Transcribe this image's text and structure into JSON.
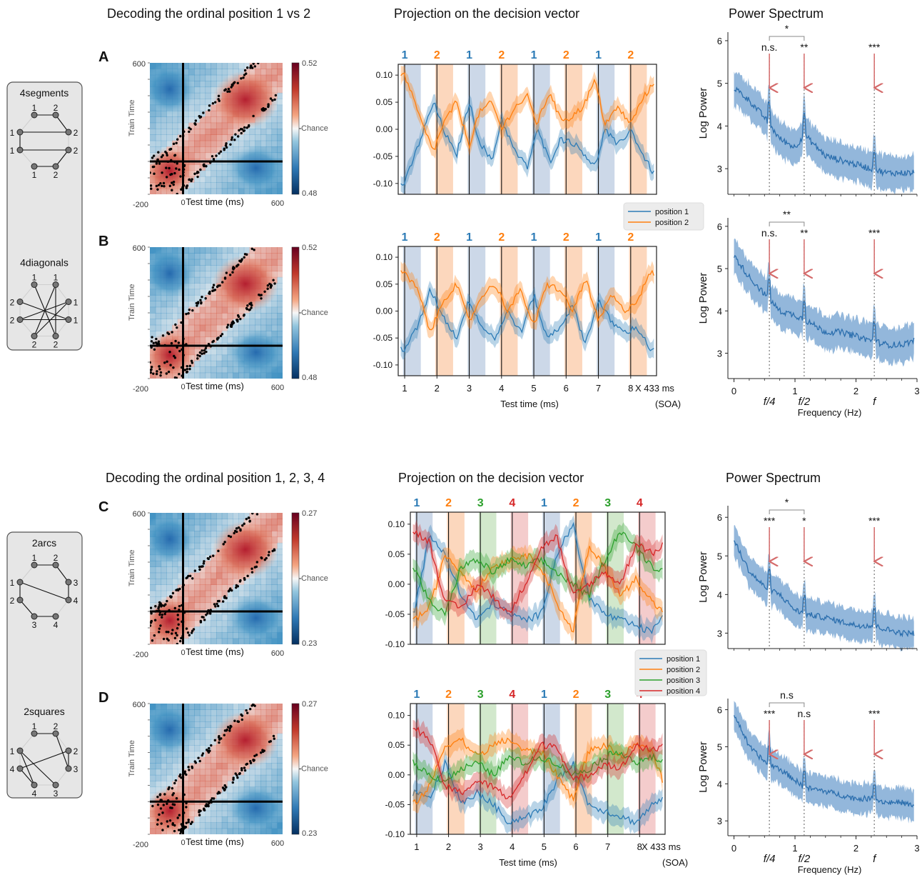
{
  "colors": {
    "pos1": "#2c7bb6",
    "pos2": "#ff7f0e",
    "pos3": "#2ca02c",
    "pos4": "#d62728",
    "pos1_band": "#c6d4e6",
    "pos2_band": "#fcd3b6",
    "pos3_band": "#cde6c7",
    "pos4_band": "#f3c6c6",
    "spectrum_line": "#2c6fae",
    "spectrum_band": "#6f9fcf",
    "arrow": "#d46a6a",
    "heat_red": "#b2182b",
    "heat_blue": "#2166ac"
  },
  "sections": [
    {
      "heat_title": "Decoding the ordinal position 1 vs 2",
      "proj_title": "Projection on the decision vector",
      "spec_title": "Power Spectrum",
      "legend": [
        "position 1",
        "position 2"
      ],
      "sequence_sets": [
        {
          "name": "4segments"
        },
        {
          "name": "4diagonals"
        }
      ]
    },
    {
      "heat_title": "Decoding the ordinal position 1, 2, 3, 4",
      "proj_title": "Projection on the decision vector",
      "spec_title": "Power Spectrum",
      "legend": [
        "position 1",
        "position 2",
        "position 3",
        "position 4"
      ],
      "sequence_sets": [
        {
          "name": "2arcs"
        },
        {
          "name": "2squares"
        }
      ]
    }
  ],
  "panels": [
    {
      "letter": "A",
      "heat": {
        "cbar_max": "0.52",
        "cbar_min": "0.48",
        "chance": "Chance"
      },
      "seq": [
        "1",
        "2",
        "1",
        "2",
        "1",
        "2",
        "1",
        "2"
      ],
      "spectrum": {
        "bracket": "*",
        "labels": [
          "n.s.",
          "**",
          "***"
        ]
      }
    },
    {
      "letter": "B",
      "heat": {
        "cbar_max": "0.52",
        "cbar_min": "0.48",
        "chance": "Chance"
      },
      "seq": [
        "1",
        "2",
        "1",
        "2",
        "1",
        "2",
        "1",
        "2"
      ],
      "spectrum": {
        "bracket": "**",
        "labels": [
          "n.s.",
          "**",
          "***"
        ]
      }
    },
    {
      "letter": "C",
      "heat": {
        "cbar_max": "0.27",
        "cbar_min": "0.23",
        "chance": "Chance"
      },
      "seq": [
        "1",
        "2",
        "3",
        "4",
        "1",
        "2",
        "3",
        "4"
      ],
      "spectrum": {
        "bracket": "*",
        "labels": [
          "***",
          "*",
          "***"
        ]
      }
    },
    {
      "letter": "D",
      "heat": {
        "cbar_max": "0.27",
        "cbar_min": "0.23",
        "chance": "Chance"
      },
      "seq": [
        "1",
        "2",
        "3",
        "4",
        "1",
        "2",
        "3",
        "4"
      ],
      "spectrum": {
        "bracket": "n.s",
        "labels": [
          "***",
          "n.s",
          "***"
        ]
      }
    }
  ],
  "heat_axes": {
    "ylabel": "Train Time",
    "xlabel": "Test time (ms)",
    "y_top": "600",
    "x_left": "-200",
    "x_zero": "0",
    "x_right": "600"
  },
  "proj_axes": {
    "xlabel": "Test time (ms)",
    "soa_label": "X 433 ms",
    "soa_sub": "(SOA)",
    "x_ticks": [
      "1",
      "2",
      "3",
      "4",
      "5",
      "6",
      "7",
      "8"
    ]
  },
  "spec_axes": {
    "ylabel": "Log Power",
    "xlabel": "Frequency (Hz)",
    "x_ticks": [
      "0",
      "1",
      "2",
      "3"
    ],
    "freq_labels": [
      "f/4",
      "f/2",
      "f"
    ]
  },
  "chart_data": [
    {
      "type": "heatmap",
      "panel": "A",
      "xlabel": "Test time (ms)",
      "ylabel": "Train Time",
      "xlim": [
        -200,
        600
      ],
      "ylim": [
        -200,
        600
      ],
      "colorbar": [
        0.48,
        0.52
      ],
      "colorbar_mid": "Chance"
    },
    {
      "type": "line",
      "panel": "A",
      "xlabel": "Test time (ms)",
      "xlim": [
        0.8,
        8.8
      ],
      "ylim": [
        -0.12,
        0.12
      ],
      "y_ticks": [
        -0.1,
        -0.05,
        0.0,
        0.05,
        0.1
      ],
      "series": [
        {
          "name": "position 1",
          "x": [
            0.9,
            1.0,
            1.3,
            1.6,
            1.9,
            2.2,
            2.6,
            3.0,
            3.3,
            3.7,
            4.0,
            4.4,
            4.8,
            5.1,
            5.5,
            5.8,
            6.1,
            6.5,
            6.9,
            7.2,
            7.6,
            8.0,
            8.4,
            8.8
          ],
          "y": [
            -0.1,
            -0.1,
            -0.05,
            0.0,
            0.05,
            0.0,
            -0.05,
            0.05,
            -0.02,
            -0.06,
            0.02,
            -0.04,
            -0.07,
            0.0,
            -0.06,
            -0.02,
            -0.02,
            -0.04,
            -0.07,
            0.0,
            -0.03,
            0.0,
            -0.05,
            -0.09
          ]
        },
        {
          "name": "position 2",
          "x": [
            0.9,
            1.0,
            1.3,
            1.6,
            1.9,
            2.2,
            2.6,
            3.0,
            3.3,
            3.7,
            4.0,
            4.4,
            4.8,
            5.1,
            5.5,
            5.8,
            6.1,
            6.5,
            6.9,
            7.2,
            7.6,
            8.0,
            8.4,
            8.8
          ],
          "y": [
            0.1,
            0.1,
            0.05,
            0.0,
            -0.04,
            0.01,
            0.05,
            -0.03,
            0.03,
            0.05,
            0.0,
            0.04,
            0.06,
            0.01,
            0.07,
            0.02,
            0.02,
            0.04,
            0.09,
            0.01,
            0.04,
            0.01,
            0.06,
            0.09
          ]
        }
      ]
    },
    {
      "type": "line",
      "panel": "A-spectrum",
      "xlabel": "Frequency (Hz)",
      "ylabel": "Log Power",
      "xlim": [
        -0.1,
        3.0
      ],
      "ylim": [
        2.4,
        6.2
      ],
      "y_ticks": [
        3,
        4,
        5,
        6
      ],
      "series": [
        {
          "name": "",
          "x": [
            0.0,
            0.25,
            0.5,
            0.75,
            1.0,
            1.15,
            1.5,
            1.75,
            2.0,
            2.25,
            2.5,
            2.75,
            2.95
          ],
          "y": [
            4.9,
            4.6,
            4.2,
            3.7,
            3.5,
            3.8,
            3.3,
            3.2,
            3.1,
            3.0,
            2.9,
            2.9,
            2.9
          ]
        }
      ]
    },
    {
      "type": "heatmap",
      "panel": "B",
      "xlabel": "Test time (ms)",
      "ylabel": "Train Time",
      "xlim": [
        -200,
        600
      ],
      "ylim": [
        -200,
        600
      ],
      "colorbar": [
        0.48,
        0.52
      ],
      "colorbar_mid": "Chance"
    },
    {
      "type": "line",
      "panel": "B",
      "xlabel": "Test time (ms)",
      "xlim": [
        0.8,
        8.8
      ],
      "ylim": [
        -0.12,
        0.12
      ],
      "y_ticks": [
        -0.1,
        -0.05,
        0.0,
        0.05,
        0.1
      ],
      "series": [
        {
          "name": "position 1",
          "x": [
            1.0,
            1.4,
            1.8,
            2.2,
            2.6,
            3.0,
            3.4,
            3.8,
            4.2,
            4.6,
            5.0,
            5.4,
            5.8,
            6.2,
            6.6,
            7.0,
            7.4,
            7.8,
            8.2,
            8.6
          ],
          "y": [
            -0.07,
            -0.03,
            0.04,
            -0.01,
            -0.05,
            0.02,
            -0.03,
            -0.05,
            0.0,
            -0.04,
            0.03,
            -0.05,
            -0.03,
            0.01,
            -0.06,
            0.02,
            -0.02,
            -0.04,
            -0.03,
            -0.07
          ]
        },
        {
          "name": "position 2",
          "x": [
            1.0,
            1.4,
            1.8,
            2.2,
            2.6,
            3.0,
            3.4,
            3.8,
            4.2,
            4.6,
            5.0,
            5.4,
            5.8,
            6.2,
            6.6,
            7.0,
            7.4,
            7.8,
            8.2,
            8.6
          ],
          "y": [
            0.07,
            0.04,
            -0.04,
            0.02,
            0.05,
            -0.02,
            0.03,
            0.05,
            0.0,
            0.04,
            -0.03,
            0.05,
            0.04,
            0.0,
            0.06,
            -0.02,
            0.03,
            0.0,
            0.02,
            0.07
          ]
        }
      ]
    },
    {
      "type": "line",
      "panel": "B-spectrum",
      "xlabel": "Frequency (Hz)",
      "ylabel": "Log Power",
      "xlim": [
        -0.1,
        3.0
      ],
      "ylim": [
        2.4,
        6.2
      ],
      "y_ticks": [
        3,
        4,
        5,
        6
      ],
      "series": [
        {
          "name": "",
          "x": [
            0.0,
            0.25,
            0.5,
            0.75,
            1.0,
            1.15,
            1.5,
            1.75,
            2.0,
            2.25,
            2.5,
            2.75,
            2.95
          ],
          "y": [
            5.3,
            4.8,
            4.4,
            4.0,
            3.9,
            3.8,
            3.5,
            3.5,
            3.4,
            3.3,
            3.2,
            3.2,
            3.3
          ]
        }
      ]
    },
    {
      "type": "heatmap",
      "panel": "C",
      "xlabel": "Test time (ms)",
      "ylabel": "Train Time",
      "xlim": [
        -200,
        600
      ],
      "ylim": [
        -200,
        600
      ],
      "colorbar": [
        0.23,
        0.27
      ],
      "colorbar_mid": "Chance"
    },
    {
      "type": "line",
      "panel": "C",
      "xlabel": "Test time (ms)",
      "xlim": [
        0.8,
        8.8
      ],
      "ylim": [
        -0.1,
        0.12
      ],
      "y_ticks": [
        -0.1,
        -0.05,
        0.0,
        0.05,
        0.1
      ],
      "series": [
        {
          "name": "position 1",
          "x": [
            0.9,
            1.4,
            1.9,
            2.4,
            2.9,
            3.4,
            3.9,
            4.4,
            4.9,
            5.4,
            5.9,
            6.4,
            6.9,
            7.4,
            7.9,
            8.4,
            8.8
          ],
          "y": [
            -0.05,
            0.08,
            0.05,
            -0.02,
            -0.06,
            -0.03,
            -0.05,
            -0.06,
            -0.05,
            0.05,
            0.1,
            -0.02,
            -0.05,
            -0.06,
            -0.07,
            -0.08,
            -0.04
          ]
        },
        {
          "name": "position 2",
          "x": [
            0.9,
            1.4,
            1.9,
            2.4,
            2.9,
            3.4,
            3.9,
            4.4,
            4.9,
            5.4,
            5.9,
            6.4,
            6.9,
            7.4,
            7.9,
            8.4,
            8.8
          ],
          "y": [
            -0.06,
            -0.04,
            0.05,
            0.02,
            -0.01,
            0.03,
            0.04,
            0.05,
            0.03,
            -0.03,
            -0.08,
            0.06,
            0.03,
            -0.02,
            0.01,
            -0.03,
            -0.05
          ]
        },
        {
          "name": "position 3",
          "x": [
            0.9,
            1.4,
            1.9,
            2.4,
            2.9,
            3.4,
            3.9,
            4.4,
            4.9,
            5.4,
            5.9,
            6.4,
            6.9,
            7.4,
            7.9,
            8.4,
            8.8
          ],
          "y": [
            0.03,
            -0.03,
            -0.05,
            0.03,
            0.04,
            0.02,
            0.04,
            0.03,
            0.04,
            0.02,
            0.0,
            -0.02,
            0.04,
            0.09,
            0.06,
            0.03,
            0.02
          ]
        },
        {
          "name": "position 4",
          "x": [
            0.9,
            1.4,
            1.9,
            2.4,
            2.9,
            3.4,
            3.9,
            4.4,
            4.9,
            5.4,
            5.9,
            6.4,
            6.9,
            7.4,
            7.9,
            8.4,
            8.8
          ],
          "y": [
            0.09,
            0.07,
            -0.03,
            -0.04,
            0.0,
            -0.02,
            -0.05,
            0.0,
            0.06,
            0.08,
            -0.02,
            0.0,
            0.02,
            0.0,
            0.07,
            0.05,
            0.07
          ]
        }
      ]
    },
    {
      "type": "line",
      "panel": "C-spectrum",
      "xlabel": "Frequency (Hz)",
      "ylabel": "Log Power",
      "xlim": [
        -0.1,
        3.0
      ],
      "ylim": [
        2.6,
        6.3
      ],
      "y_ticks": [
        3,
        4,
        5,
        6
      ],
      "series": [
        {
          "name": "",
          "x": [
            0.0,
            0.25,
            0.5,
            0.75,
            1.0,
            1.15,
            1.5,
            1.75,
            2.0,
            2.25,
            2.5,
            2.75,
            2.95
          ],
          "y": [
            5.4,
            4.6,
            4.2,
            4.0,
            3.6,
            3.5,
            3.4,
            3.3,
            3.2,
            3.2,
            3.1,
            3.0,
            3.0
          ]
        }
      ]
    },
    {
      "type": "heatmap",
      "panel": "D",
      "xlabel": "Test time (ms)",
      "ylabel": "Train Time",
      "xlim": [
        -200,
        600
      ],
      "ylim": [
        -200,
        600
      ],
      "colorbar": [
        0.23,
        0.27
      ],
      "colorbar_mid": "Chance"
    },
    {
      "type": "line",
      "panel": "D",
      "xlabel": "Test time (ms)",
      "xlim": [
        0.8,
        8.8
      ],
      "ylim": [
        -0.1,
        0.12
      ],
      "y_ticks": [
        -0.1,
        -0.05,
        0.0,
        0.05,
        0.1
      ],
      "series": [
        {
          "name": "position 1",
          "x": [
            0.9,
            1.4,
            1.9,
            2.4,
            2.9,
            3.4,
            3.9,
            4.4,
            4.9,
            5.4,
            5.9,
            6.4,
            6.9,
            7.4,
            7.9,
            8.4,
            8.8
          ],
          "y": [
            -0.03,
            -0.04,
            0.02,
            -0.05,
            -0.03,
            -0.05,
            -0.08,
            -0.07,
            -0.06,
            -0.01,
            0.02,
            -0.05,
            -0.06,
            -0.07,
            -0.08,
            -0.05,
            -0.04
          ]
        },
        {
          "name": "position 2",
          "x": [
            0.9,
            1.4,
            1.9,
            2.4,
            2.9,
            3.4,
            3.9,
            4.4,
            4.9,
            5.4,
            5.9,
            6.4,
            6.9,
            7.4,
            7.9,
            8.4,
            8.8
          ],
          "y": [
            -0.05,
            -0.02,
            0.05,
            0.06,
            0.03,
            0.05,
            0.06,
            0.04,
            0.04,
            0.0,
            -0.04,
            0.04,
            0.05,
            0.03,
            0.05,
            0.04,
            -0.02
          ]
        },
        {
          "name": "position 3",
          "x": [
            0.9,
            1.4,
            1.9,
            2.4,
            2.9,
            3.4,
            3.9,
            4.4,
            4.9,
            5.4,
            5.9,
            6.4,
            6.9,
            7.4,
            7.9,
            8.4,
            8.8
          ],
          "y": [
            0.02,
            0.0,
            -0.01,
            0.01,
            0.02,
            0.0,
            0.03,
            0.02,
            0.03,
            0.02,
            0.0,
            0.01,
            0.03,
            0.04,
            0.02,
            0.03,
            0.02
          ]
        },
        {
          "name": "position 4",
          "x": [
            0.9,
            1.4,
            1.9,
            2.4,
            2.9,
            3.4,
            3.9,
            4.4,
            4.9,
            5.4,
            5.9,
            6.4,
            6.9,
            7.4,
            7.9,
            8.4,
            8.8
          ],
          "y": [
            0.08,
            0.06,
            -0.02,
            -0.03,
            -0.01,
            -0.02,
            -0.04,
            0.0,
            0.05,
            0.05,
            -0.01,
            0.0,
            0.02,
            0.01,
            0.05,
            0.04,
            0.05
          ]
        }
      ]
    },
    {
      "type": "line",
      "panel": "D-spectrum",
      "xlabel": "Frequency (Hz)",
      "ylabel": "Log Power",
      "xlim": [
        -0.1,
        3.0
      ],
      "ylim": [
        2.6,
        6.3
      ],
      "y_ticks": [
        3,
        4,
        5,
        6
      ],
      "series": [
        {
          "name": "",
          "x": [
            0.0,
            0.25,
            0.5,
            0.75,
            1.0,
            1.15,
            1.5,
            1.75,
            2.0,
            2.25,
            2.5,
            2.75,
            2.95
          ],
          "y": [
            5.9,
            5.0,
            4.6,
            4.4,
            4.1,
            3.9,
            3.8,
            3.7,
            3.6,
            3.6,
            3.5,
            3.5,
            3.4
          ]
        }
      ]
    }
  ]
}
